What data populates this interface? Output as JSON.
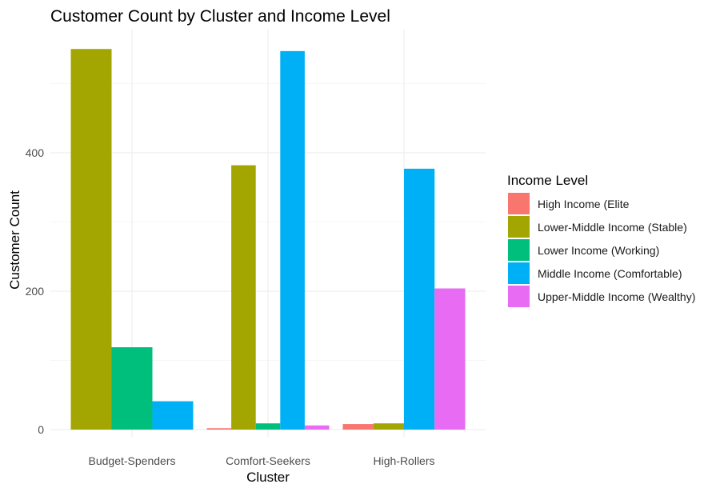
{
  "chart_data": {
    "type": "bar",
    "title": "Customer Count by Cluster and Income Level",
    "xlabel": "Cluster",
    "ylabel": "Customer Count",
    "categories": [
      "Budget-Spenders",
      "Comfort-Seekers",
      "High-Rollers"
    ],
    "ylim": [
      0,
      575
    ],
    "yticks": [
      0,
      200,
      400
    ],
    "grid": true,
    "legend": {
      "title": "Income Level",
      "position": "right"
    },
    "series": [
      {
        "name": "High Income (Elite",
        "color": "#F8766D",
        "values": [
          null,
          2,
          8
        ]
      },
      {
        "name": "Lower-Middle Income (Stable)",
        "color": "#A3A500",
        "values": [
          550,
          382,
          9
        ]
      },
      {
        "name": "Lower Income (Working)",
        "color": "#00BF7D",
        "values": [
          119,
          9,
          null
        ]
      },
      {
        "name": "Middle Income (Comfortable)",
        "color": "#00B0F6",
        "values": [
          41,
          547,
          377
        ]
      },
      {
        "name": "Upper-Middle Income (Wealthy)",
        "color": "#E76BF3",
        "values": [
          null,
          6,
          204
        ]
      }
    ]
  }
}
